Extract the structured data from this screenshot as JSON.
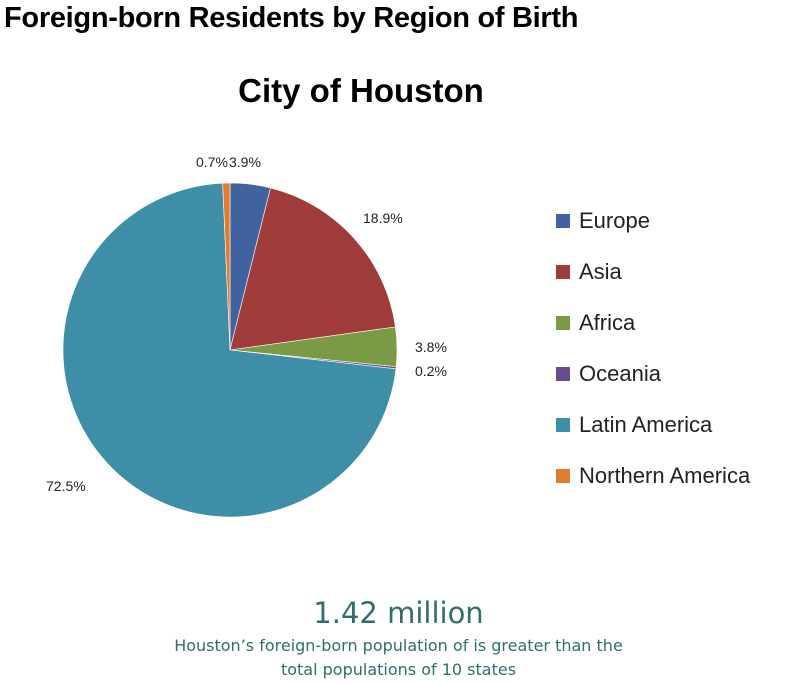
{
  "page": {
    "title": "Foreign-born Residents by Region of Birth"
  },
  "chart_data": {
    "type": "pie",
    "title": "City of Houston",
    "legend_position": "right",
    "slices": [
      {
        "name": "Europe",
        "value": 3.9,
        "label": "3.9%",
        "color": "#4063a0"
      },
      {
        "name": "Asia",
        "value": 18.9,
        "label": "18.9%",
        "color": "#9f3b3b"
      },
      {
        "name": "Africa",
        "value": 3.8,
        "label": "3.8%",
        "color": "#7a9a45"
      },
      {
        "name": "Oceania",
        "value": 0.2,
        "label": "0.2%",
        "color": "#6a4b8f"
      },
      {
        "name": "Latin America",
        "value": 72.5,
        "label": "72.5%",
        "color": "#3d8ea6"
      },
      {
        "name": "Northern America",
        "value": 0.7,
        "label": "0.7%",
        "color": "#e07c2e"
      }
    ]
  },
  "stat": {
    "value": "1.42 million",
    "caption_line1": "Houston’s foreign-born population of is greater than the",
    "caption_line2": "total populations of 10 states"
  }
}
